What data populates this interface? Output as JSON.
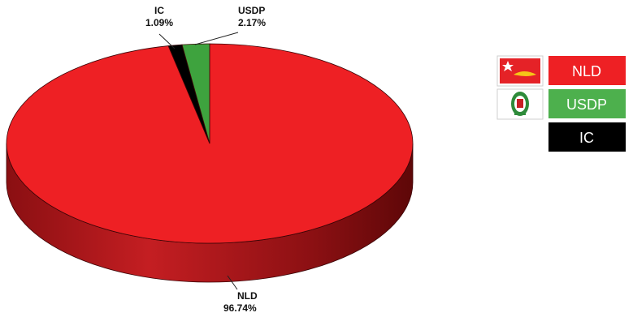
{
  "chart_data": {
    "type": "pie",
    "style": "3d",
    "categories": [
      "NLD",
      "USDP",
      "IC"
    ],
    "values": [
      96.74,
      2.17,
      1.09
    ],
    "value_labels": [
      "96.74%",
      "2.17%",
      "1.09%"
    ],
    "colors": [
      "#ee2024",
      "#3ea33e",
      "#000000"
    ],
    "side_colors": [
      "#b01a1d",
      "#2a7a2a",
      "#000000"
    ],
    "title": "",
    "legend": {
      "position": "right",
      "entries": [
        {
          "label": "NLD",
          "color": "#ee2024",
          "emblem": "nld-flag-icon"
        },
        {
          "label": "USDP",
          "color": "#4db04d",
          "emblem": "usdp-emblem-icon"
        },
        {
          "label": "IC",
          "color": "#000000",
          "emblem": ""
        }
      ]
    }
  }
}
